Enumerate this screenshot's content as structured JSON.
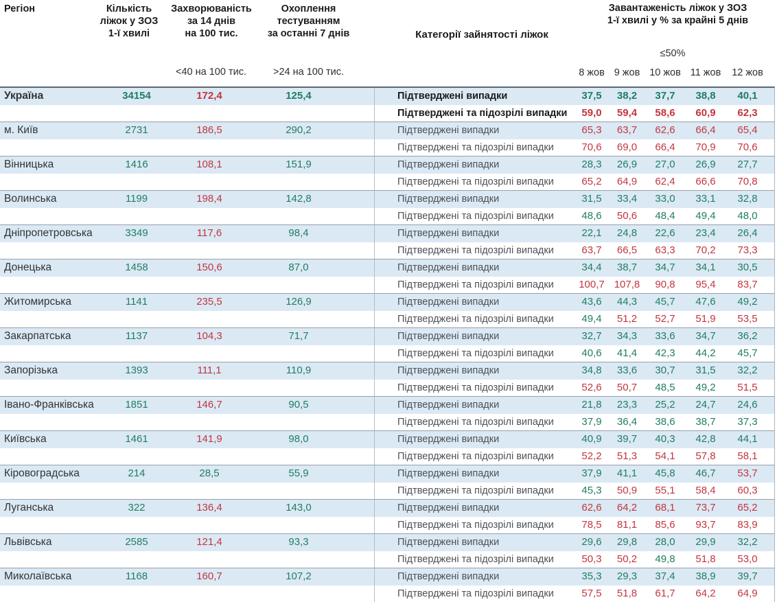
{
  "colors": {
    "green": "#1f7d62",
    "red": "#c2353f",
    "row_blue": "#dbe9f4"
  },
  "thresholds": {
    "incidence_red_at": 40,
    "load_red_above": 50
  },
  "header": {
    "region": "Регіон",
    "beds": "Кількість\nліжок у ЗОЗ\n1-ї хвилі",
    "incidence": "Захворюваність\nза 14 днів\nна 100 тис.",
    "testing": "Охоплення\nтестуванням\nза останні 7 днів",
    "categories": "Категорії зайнятості ліжок",
    "load": "Завантаженість ліжок у ЗОЗ\n1-ї хвилі у % за крайні 5 днів",
    "incidence_threshold": "<40 на 100 тис.",
    "testing_threshold": ">24 на 100 тис.",
    "load_threshold": "≤50%",
    "dates": [
      "8 жов",
      "9 жов",
      "10 жов",
      "11 жов",
      "12 жов"
    ]
  },
  "row_labels": {
    "confirmed": "Підтверджені випадки",
    "suspected": "Підтверджені та підозрілі випадки"
  },
  "regions": [
    {
      "name": "Україна",
      "bold": true,
      "beds": "34154",
      "incidence": "172,4",
      "testing": "125,4",
      "confirmed": [
        "37,5",
        "38,2",
        "37,7",
        "38,8",
        "40,1"
      ],
      "suspected": [
        "59,0",
        "59,4",
        "58,6",
        "60,9",
        "62,3"
      ]
    },
    {
      "name": "м. Київ",
      "bold": false,
      "beds": "2731",
      "incidence": "186,5",
      "testing": "290,2",
      "confirmed": [
        "65,3",
        "63,7",
        "62,6",
        "66,4",
        "65,4"
      ],
      "suspected": [
        "70,6",
        "69,0",
        "66,4",
        "70,9",
        "70,6"
      ]
    },
    {
      "name": "Вінницька",
      "bold": false,
      "beds": "1416",
      "incidence": "108,1",
      "testing": "151,9",
      "confirmed": [
        "28,3",
        "26,9",
        "27,0",
        "26,9",
        "27,7"
      ],
      "suspected": [
        "65,2",
        "64,9",
        "62,4",
        "66,6",
        "70,8"
      ]
    },
    {
      "name": "Волинська",
      "bold": false,
      "beds": "1199",
      "incidence": "198,4",
      "testing": "142,8",
      "confirmed": [
        "31,5",
        "33,4",
        "33,0",
        "33,1",
        "32,8"
      ],
      "suspected": [
        "48,6",
        "50,6",
        "48,4",
        "49,4",
        "48,0"
      ]
    },
    {
      "name": "Дніпропетровська",
      "bold": false,
      "beds": "3349",
      "incidence": "117,6",
      "testing": "98,4",
      "confirmed": [
        "22,1",
        "24,8",
        "22,6",
        "23,4",
        "26,4"
      ],
      "suspected": [
        "63,7",
        "66,5",
        "63,3",
        "70,2",
        "73,3"
      ]
    },
    {
      "name": "Донецька",
      "bold": false,
      "beds": "1458",
      "incidence": "150,6",
      "testing": "87,0",
      "confirmed": [
        "34,4",
        "38,7",
        "34,7",
        "34,1",
        "30,5"
      ],
      "suspected": [
        "100,7",
        "107,8",
        "90,8",
        "95,4",
        "83,7"
      ]
    },
    {
      "name": "Житомирська",
      "bold": false,
      "beds": "1141",
      "incidence": "235,5",
      "testing": "126,9",
      "confirmed": [
        "43,6",
        "44,3",
        "45,7",
        "47,6",
        "49,2"
      ],
      "suspected": [
        "49,4",
        "51,2",
        "52,7",
        "51,9",
        "53,5"
      ]
    },
    {
      "name": "Закарпатська",
      "bold": false,
      "beds": "1137",
      "incidence": "104,3",
      "testing": "71,7",
      "confirmed": [
        "32,7",
        "34,3",
        "33,6",
        "34,7",
        "36,2"
      ],
      "suspected": [
        "40,6",
        "41,4",
        "42,3",
        "44,2",
        "45,7"
      ]
    },
    {
      "name": "Запорізька",
      "bold": false,
      "beds": "1393",
      "incidence": "111,1",
      "testing": "110,9",
      "confirmed": [
        "34,8",
        "33,6",
        "30,7",
        "31,5",
        "32,2"
      ],
      "suspected": [
        "52,6",
        "50,7",
        "48,5",
        "49,2",
        "51,5"
      ]
    },
    {
      "name": "Івано-Франківська",
      "bold": false,
      "beds": "1851",
      "incidence": "146,7",
      "testing": "90,5",
      "confirmed": [
        "21,8",
        "23,3",
        "25,2",
        "24,7",
        "24,6"
      ],
      "suspected": [
        "37,9",
        "36,4",
        "38,6",
        "38,7",
        "37,3"
      ]
    },
    {
      "name": "Київська",
      "bold": false,
      "beds": "1461",
      "incidence": "141,9",
      "testing": "98,0",
      "confirmed": [
        "40,9",
        "39,7",
        "40,3",
        "42,8",
        "44,1"
      ],
      "suspected": [
        "52,2",
        "51,3",
        "54,1",
        "57,8",
        "58,1"
      ]
    },
    {
      "name": "Кіровоградська",
      "bold": false,
      "beds": "214",
      "incidence": "28,5",
      "testing": "55,9",
      "confirmed": [
        "37,9",
        "41,1",
        "45,8",
        "46,7",
        "53,7"
      ],
      "suspected": [
        "45,3",
        "50,9",
        "55,1",
        "58,4",
        "60,3"
      ]
    },
    {
      "name": "Луганська",
      "bold": false,
      "beds": "322",
      "incidence": "136,4",
      "testing": "143,0",
      "confirmed": [
        "62,6",
        "64,2",
        "68,1",
        "73,7",
        "65,2"
      ],
      "suspected": [
        "78,5",
        "81,1",
        "85,6",
        "93,7",
        "83,9"
      ]
    },
    {
      "name": "Львівська",
      "bold": false,
      "beds": "2585",
      "incidence": "121,4",
      "testing": "93,3",
      "confirmed": [
        "29,6",
        "29,8",
        "28,0",
        "29,9",
        "32,2"
      ],
      "suspected": [
        "50,3",
        "50,2",
        "49,8",
        "51,8",
        "53,0"
      ]
    },
    {
      "name": "Миколаївська",
      "bold": false,
      "beds": "1168",
      "incidence": "160,7",
      "testing": "107,2",
      "confirmed": [
        "35,3",
        "29,3",
        "37,4",
        "38,9",
        "39,7"
      ],
      "suspected": [
        "57,5",
        "51,8",
        "61,7",
        "64,2",
        "64,9"
      ]
    }
  ]
}
